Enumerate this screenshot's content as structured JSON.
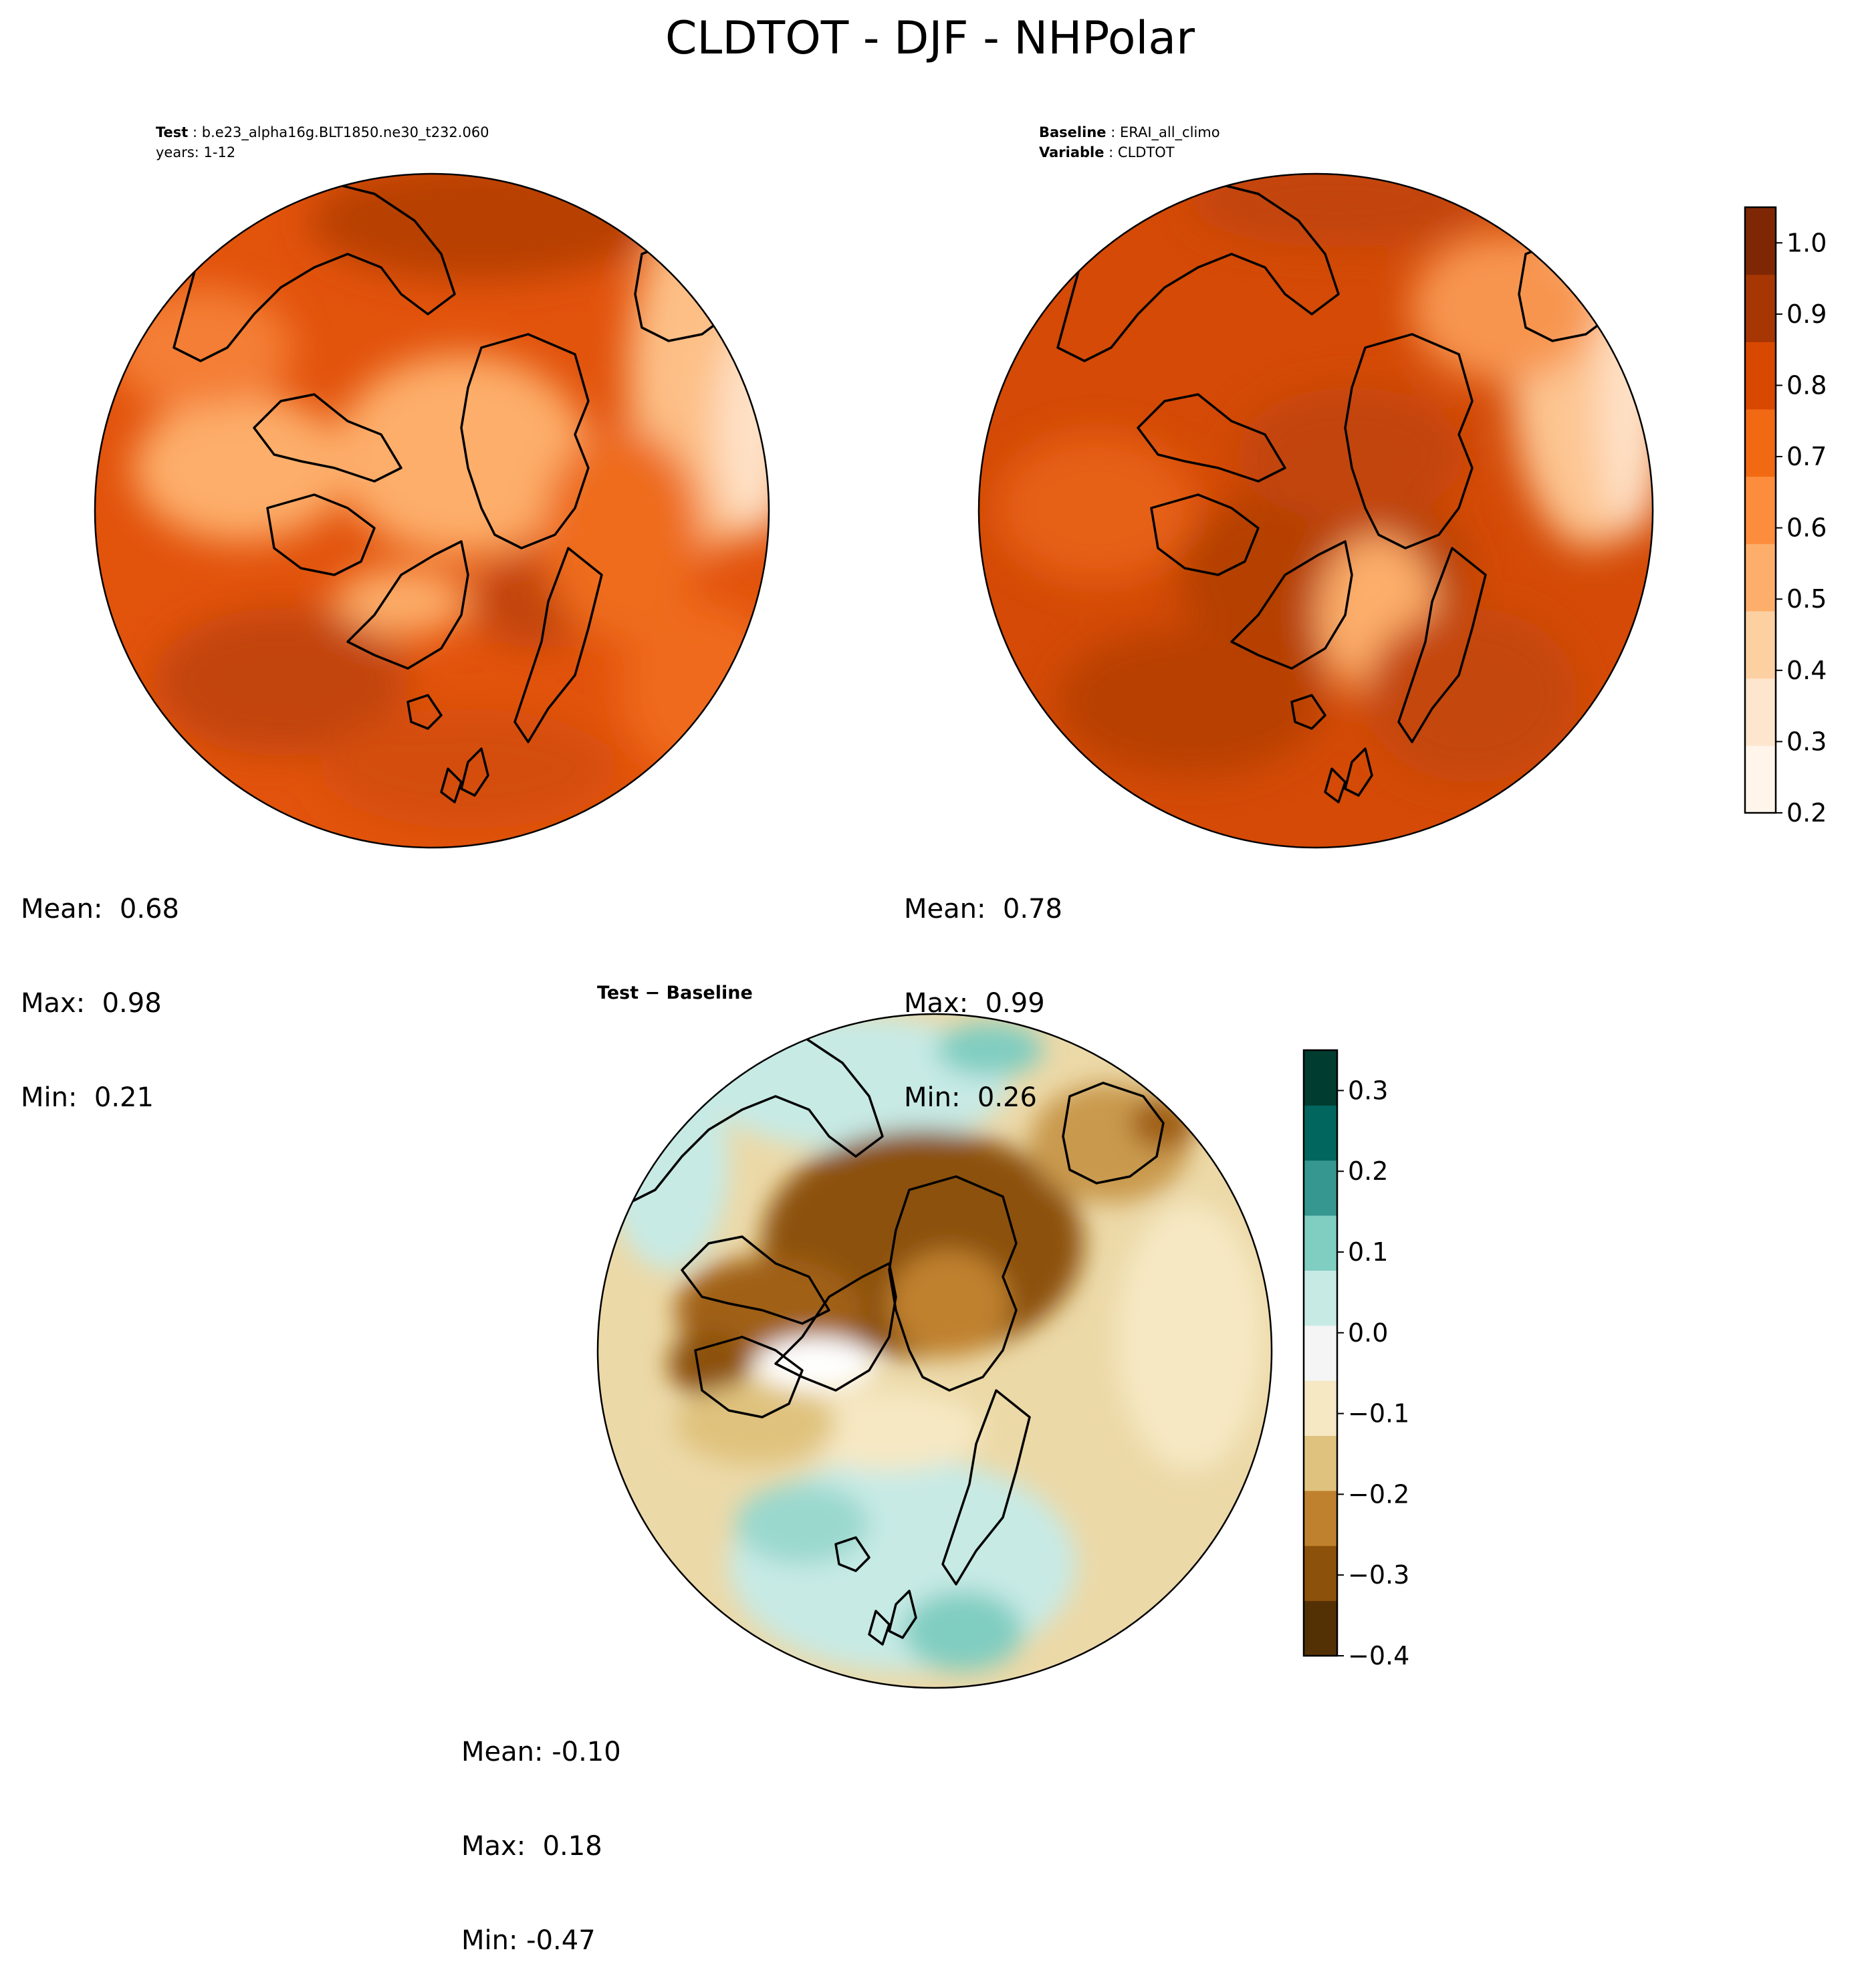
{
  "figure": {
    "title": "CLDTOT - DJF - NHPolar",
    "colors": {
      "test_palette": [
        "#fff5eb",
        "#fee6ce",
        "#fdd0a2",
        "#fdae6b",
        "#fd8d3c",
        "#f16913",
        "#d94801",
        "#a63603",
        "#7f2704"
      ],
      "diff_palette": [
        "#543005",
        "#8c510a",
        "#bf812d",
        "#dfc27d",
        "#f6e8c3",
        "#f5f5f5",
        "#c7eae5",
        "#80cdc1",
        "#35978f",
        "#01665e",
        "#003c30"
      ]
    }
  },
  "test_panel": {
    "label_key": "Test",
    "label_value": "b.e23_alpha16g.BLT1850.ne30_t232.060",
    "years": "years: 1-12",
    "stats": {
      "mean_label": "Mean:",
      "mean": "0.68",
      "max_label": "Max:",
      "max": "0.98",
      "min_label": "Min:",
      "min": "0.21"
    }
  },
  "baseline_panel": {
    "label_key": "Baseline",
    "label_value": "ERAI_all_climo",
    "variable_key": "Variable",
    "variable_value": "CLDTOT",
    "stats": {
      "mean_label": "Mean:",
      "mean": "0.78",
      "max_label": "Max:",
      "max": "0.99",
      "min_label": "Min:",
      "min": "0.26"
    }
  },
  "diff_panel": {
    "title": "Test − Baseline",
    "stats": {
      "mean_label": "Mean:",
      "mean": "-0.10",
      "max_label": "Max:",
      "max": "0.18",
      "min_label": "Min:",
      "min": "-0.47"
    }
  },
  "colorbar_top": {
    "min": 0.2,
    "max": 1.05,
    "ticks": [
      "0.2",
      "0.3",
      "0.4",
      "0.5",
      "0.6",
      "0.7",
      "0.8",
      "0.9",
      "1.0"
    ]
  },
  "colorbar_diff": {
    "min": -0.4,
    "max": 0.35,
    "ticks": [
      "−0.4",
      "−0.3",
      "−0.2",
      "−0.1",
      "0.0",
      "0.1",
      "0.2",
      "0.3"
    ]
  }
}
